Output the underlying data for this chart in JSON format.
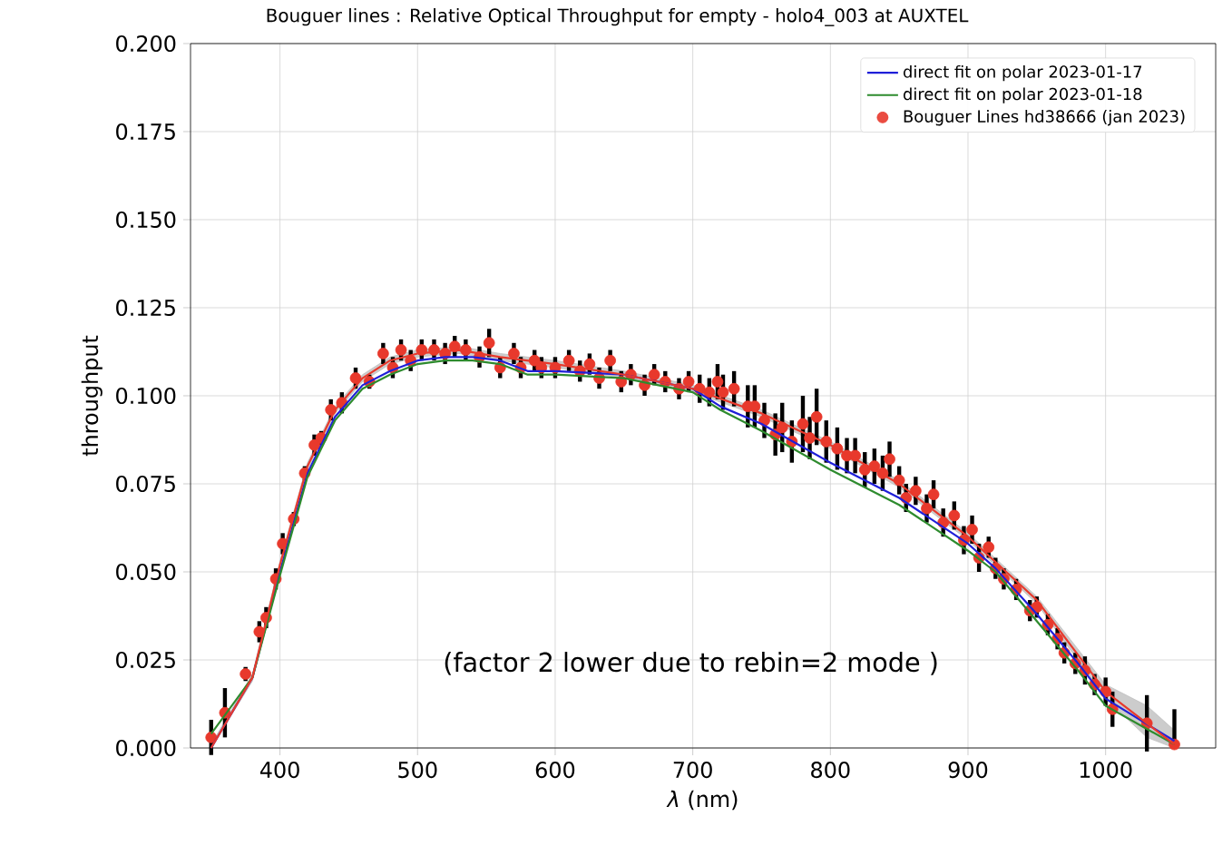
{
  "chart_data": {
    "type": "line",
    "title": "Bouguer lines : Relative Optical Throughput for empty - holo4_003 at AUXTEL",
    "xlabel": "*λ* (nm)",
    "ylabel": "throughput",
    "xlim": [
      335,
      1080
    ],
    "ylim": [
      0,
      0.2
    ],
    "xticks": [
      400,
      500,
      600,
      700,
      800,
      900,
      1000
    ],
    "yticks": [
      {
        "value": 0,
        "label": "0.000"
      },
      {
        "value": 0.025,
        "label": "0.025"
      },
      {
        "value": 0.05,
        "label": "0.050"
      },
      {
        "value": 0.075,
        "label": "0.075"
      },
      {
        "value": 0.1,
        "label": "0.100"
      },
      {
        "value": 0.125,
        "label": "0.125"
      },
      {
        "value": 0.15,
        "label": "0.150"
      },
      {
        "value": 0.175,
        "label": "0.175"
      },
      {
        "value": 0.2,
        "label": "0.200"
      }
    ],
    "grid": true,
    "legend": "top right",
    "marker": "none",
    "annotations": [
      "(factor 2 lower due to rebin=2 mode )"
    ],
    "series": [
      {
        "name": "direct fit on polar 2023-01-17",
        "color": "#1f1fd8",
        "x": [
          350,
          380,
          400,
          420,
          440,
          460,
          480,
          500,
          520,
          540,
          560,
          580,
          600,
          650,
          700,
          720,
          750,
          800,
          850,
          900,
          920,
          950,
          980,
          1000,
          1050
        ],
        "values": [
          0,
          0.02,
          0.05,
          0.078,
          0.094,
          0.103,
          0.107,
          0.11,
          0.111,
          0.111,
          0.11,
          0.107,
          0.107,
          0.106,
          0.102,
          0.097,
          0.092,
          0.081,
          0.071,
          0.058,
          0.051,
          0.038,
          0.024,
          0.014,
          0.002
        ]
      },
      {
        "name": "direct fit on polar 2023-01-18",
        "color": "#2e8b2e",
        "x": [
          350,
          380,
          400,
          420,
          440,
          460,
          480,
          500,
          520,
          540,
          560,
          580,
          600,
          650,
          700,
          720,
          750,
          800,
          850,
          900,
          920,
          950,
          980,
          1000,
          1050
        ],
        "values": [
          0.004,
          0.02,
          0.049,
          0.077,
          0.093,
          0.102,
          0.106,
          0.109,
          0.11,
          0.11,
          0.109,
          0.106,
          0.106,
          0.105,
          0.101,
          0.096,
          0.09,
          0.079,
          0.069,
          0.056,
          0.05,
          0.036,
          0.022,
          0.012,
          0.001
        ]
      },
      {
        "color": "#e8392c",
        "x": [
          350,
          380,
          400,
          420,
          440,
          460,
          480,
          500,
          530,
          560,
          600,
          650,
          700,
          750,
          800,
          850,
          900,
          950,
          1000,
          1030,
          1050
        ],
        "values": [
          0,
          0.02,
          0.052,
          0.08,
          0.096,
          0.105,
          0.11,
          0.112,
          0.113,
          0.111,
          0.109,
          0.106,
          0.102,
          0.095,
          0.086,
          0.075,
          0.06,
          0.042,
          0.016,
          0.007,
          0.001
        ],
        "lower": [
          0,
          0.019,
          0.051,
          0.079,
          0.095,
          0.104,
          0.109,
          0.111,
          0.112,
          0.11,
          0.108,
          0.105,
          0.101,
          0.094,
          0.085,
          0.074,
          0.059,
          0.041,
          0.014,
          0.003,
          0
        ],
        "upper": [
          0.001,
          0.021,
          0.053,
          0.081,
          0.097,
          0.106,
          0.111,
          0.113,
          0.114,
          0.112,
          0.11,
          0.107,
          0.103,
          0.096,
          0.087,
          0.076,
          0.061,
          0.043,
          0.018,
          0.012,
          0.005
        ]
      },
      {
        "name": "Bouguer Lines hd38666 (jan 2023)",
        "color": "#e8392c",
        "type": "scatter",
        "marker": "circle",
        "x": [
          350,
          360,
          375,
          385,
          390,
          397,
          402,
          410,
          418,
          425,
          430,
          437,
          445,
          455,
          465,
          475,
          482,
          488,
          495,
          503,
          512,
          520,
          527,
          535,
          545,
          552,
          560,
          570,
          575,
          585,
          590,
          600,
          610,
          618,
          625,
          632,
          640,
          648,
          655,
          665,
          672,
          680,
          690,
          697,
          705,
          712,
          718,
          722,
          730,
          740,
          745,
          752,
          760,
          765,
          772,
          780,
          785,
          790,
          797,
          805,
          812,
          818,
          825,
          832,
          838,
          843,
          850,
          855,
          862,
          870,
          875,
          882,
          890,
          897,
          903,
          908,
          915,
          920,
          926,
          935,
          945,
          950,
          958,
          965,
          970,
          978,
          985,
          992,
          1000,
          1005,
          1030,
          1050
        ],
        "values": [
          0.003,
          0.01,
          0.021,
          0.033,
          0.037,
          0.048,
          0.058,
          0.065,
          0.078,
          0.086,
          0.088,
          0.096,
          0.098,
          0.105,
          0.104,
          0.112,
          0.108,
          0.113,
          0.11,
          0.113,
          0.113,
          0.112,
          0.114,
          0.113,
          0.111,
          0.115,
          0.108,
          0.112,
          0.108,
          0.11,
          0.108,
          0.108,
          0.11,
          0.107,
          0.109,
          0.105,
          0.11,
          0.104,
          0.106,
          0.103,
          0.106,
          0.104,
          0.102,
          0.104,
          0.102,
          0.101,
          0.104,
          0.101,
          0.102,
          0.097,
          0.097,
          0.093,
          0.089,
          0.091,
          0.087,
          0.092,
          0.088,
          0.094,
          0.087,
          0.085,
          0.083,
          0.083,
          0.079,
          0.08,
          0.078,
          0.082,
          0.076,
          0.071,
          0.073,
          0.068,
          0.072,
          0.064,
          0.066,
          0.059,
          0.062,
          0.054,
          0.057,
          0.051,
          0.048,
          0.045,
          0.039,
          0.04,
          0.035,
          0.031,
          0.027,
          0.024,
          0.022,
          0.018,
          0.016,
          0.011,
          0.007,
          0.001
        ],
        "errors": [
          0.005,
          0.007,
          0.002,
          0.003,
          0.003,
          0.003,
          0.003,
          0.002,
          0.002,
          0.003,
          0.002,
          0.003,
          0.003,
          0.003,
          0.002,
          0.003,
          0.003,
          0.003,
          0.003,
          0.003,
          0.003,
          0.003,
          0.003,
          0.003,
          0.003,
          0.004,
          0.003,
          0.003,
          0.003,
          0.003,
          0.003,
          0.003,
          0.003,
          0.003,
          0.003,
          0.003,
          0.003,
          0.003,
          0.003,
          0.003,
          0.003,
          0.003,
          0.003,
          0.003,
          0.004,
          0.004,
          0.005,
          0.005,
          0.005,
          0.006,
          0.006,
          0.005,
          0.006,
          0.007,
          0.006,
          0.008,
          0.006,
          0.008,
          0.006,
          0.006,
          0.005,
          0.005,
          0.005,
          0.005,
          0.005,
          0.005,
          0.004,
          0.004,
          0.004,
          0.004,
          0.004,
          0.004,
          0.004,
          0.004,
          0.004,
          0.004,
          0.003,
          0.003,
          0.003,
          0.003,
          0.003,
          0.003,
          0.003,
          0.003,
          0.003,
          0.003,
          0.004,
          0.003,
          0.004,
          0.005,
          0.008,
          [
            0,
            0.011
          ]
        ]
      }
    ]
  }
}
